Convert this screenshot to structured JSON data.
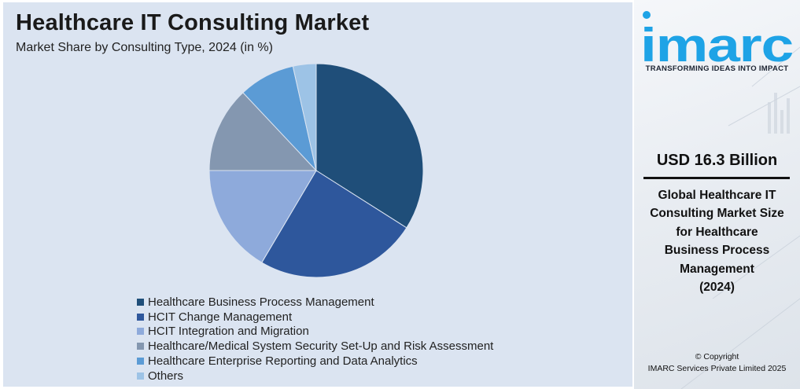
{
  "colors": {
    "panel_bg": "#dbe4f1",
    "brand_blue": "#1ea3e6"
  },
  "brand": {
    "logo_text": "imarc",
    "tagline": "TRANSFORMING IDEAS INTO IMPACT"
  },
  "headline": {
    "value": "USD 16.3 Billion",
    "desc_lines": [
      "Global Healthcare IT",
      "Consulting Market Size",
      "for Healthcare",
      "Business Process",
      "Management",
      "(2024)"
    ]
  },
  "copyright": {
    "line1": "© Copyright",
    "line2": "IMARC Services Private Limited 2025"
  },
  "chart_data": {
    "type": "pie",
    "title": "Healthcare IT Consulting Market",
    "subtitle": "Market Share by Consulting Type, 2024 (in %)",
    "categories": [
      "Healthcare Business Process Management",
      "HCIT Change Management",
      "HCIT Integration and Migration",
      "Healthcare/Medical System Security Set-Up and Risk Assessment",
      "Healthcare Enterprise Reporting and Data Analytics",
      "Others"
    ],
    "values": [
      34,
      24.5,
      16.5,
      13,
      8.5,
      3.5
    ],
    "colors": [
      "#1f4e79",
      "#2e579c",
      "#8eaadb",
      "#8497b0",
      "#5b9bd5",
      "#9dc3e6"
    ],
    "legend_position": "bottom-left",
    "start": "top",
    "direction": "clockwise"
  }
}
